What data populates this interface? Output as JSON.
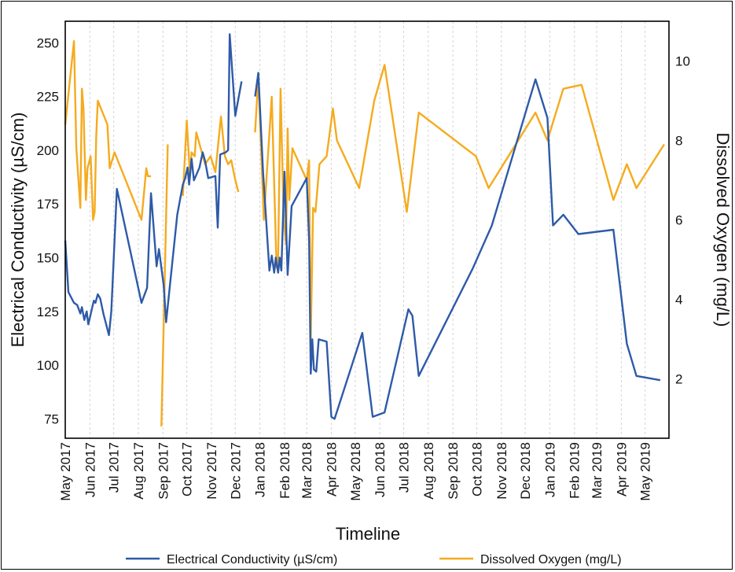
{
  "chart_data": {
    "type": "line",
    "xlabel": "Timeline",
    "ylabel_left": "Electrical Conductivity (µS/cm)",
    "ylabel_right": "Dissolved Oxygen (mg/L)",
    "ylim_left": [
      66,
      260
    ],
    "ylim_right": [
      0.5,
      11
    ],
    "yticks_left": [
      75,
      100,
      125,
      150,
      175,
      200,
      225,
      250
    ],
    "yticks_right": [
      2,
      4,
      6,
      8,
      10
    ],
    "grid": "vertical dashed",
    "legend_position": "bottom",
    "x_months": [
      "May 2017",
      "Jun 2017",
      "Jul 2017",
      "Aug 2017",
      "Sep 2017",
      "Oct 2017",
      "Nov 2017",
      "Dec 2017",
      "Jan 2018",
      "Feb 2018",
      "Mar 2018",
      "Apr 2018",
      "May 2018",
      "Jun 2018",
      "Jul 2018",
      "Aug 2018",
      "Sep 2018",
      "Oct 2018",
      "Nov 2018",
      "Dec 2018",
      "Jan 2019",
      "Feb 2019",
      "Mar 2019",
      "Apr 2019",
      "May 2019"
    ],
    "series": [
      {
        "name": "Electrical Conductivity (µS/cm)",
        "axis": "left",
        "color": "#2e5aa8",
        "segments": [
          [
            [
              "2017-05-01",
              158
            ],
            [
              "2017-05-05",
              134
            ],
            [
              "2017-05-12",
              129
            ],
            [
              "2017-05-16",
              128
            ],
            [
              "2017-05-20",
              124
            ],
            [
              "2017-05-22",
              127
            ],
            [
              "2017-05-25",
              121
            ],
            [
              "2017-05-28",
              125
            ],
            [
              "2017-05-30",
              119
            ],
            [
              "2017-06-01",
              122
            ],
            [
              "2017-06-04",
              127
            ],
            [
              "2017-06-06",
              130
            ],
            [
              "2017-06-08",
              129
            ],
            [
              "2017-06-11",
              133
            ],
            [
              "2017-06-14",
              131
            ],
            [
              "2017-06-18",
              124
            ],
            [
              "2017-06-25",
              114
            ],
            [
              "2017-06-28",
              125
            ],
            [
              "2017-07-05",
              182
            ],
            [
              "2017-08-05",
              129
            ],
            [
              "2017-08-12",
              136
            ],
            [
              "2017-08-17",
              180
            ],
            [
              "2017-08-24",
              146
            ],
            [
              "2017-08-27",
              154
            ],
            [
              "2017-09-02",
              137
            ],
            [
              "2017-09-05",
              120
            ],
            [
              "2017-09-19",
              170
            ],
            [
              "2017-09-26",
              184
            ],
            [
              "2017-09-29",
              187
            ],
            [
              "2017-10-02",
              192
            ],
            [
              "2017-10-04",
              184
            ],
            [
              "2017-10-07",
              196
            ],
            [
              "2017-10-10",
              186
            ],
            [
              "2017-10-17",
              192
            ],
            [
              "2017-10-21",
              199
            ],
            [
              "2017-10-24",
              195
            ],
            [
              "2017-10-28",
              187
            ],
            [
              "2017-11-06",
              188
            ],
            [
              "2017-11-09",
              164
            ],
            [
              "2017-11-12",
              198
            ],
            [
              "2017-11-19",
              199
            ],
            [
              "2017-11-22",
              200
            ],
            [
              "2017-11-24",
              254
            ],
            [
              "2017-12-01",
              216
            ],
            [
              "2017-12-09",
              232
            ]
          ],
          [
            [
              "2017-12-26",
              225
            ],
            [
              "2017-12-30",
              236
            ],
            [
              "2018-01-05",
              190
            ],
            [
              "2018-01-13",
              144
            ],
            [
              "2018-01-16",
              151
            ],
            [
              "2018-01-19",
              143
            ],
            [
              "2018-01-21",
              150
            ],
            [
              "2018-01-24",
              143
            ],
            [
              "2018-01-26",
              150
            ],
            [
              "2018-01-28",
              144
            ],
            [
              "2018-02-01",
              190
            ],
            [
              "2018-02-05",
              142
            ],
            [
              "2018-02-10",
              174
            ],
            [
              "2018-03-01",
              187
            ],
            [
              "2018-03-04",
              158
            ],
            [
              "2018-03-06",
              96
            ],
            [
              "2018-03-08",
              112
            ],
            [
              "2018-03-10",
              98
            ],
            [
              "2018-03-13",
              97
            ],
            [
              "2018-03-16",
              112
            ],
            [
              "2018-03-26",
              111
            ],
            [
              "2018-04-01",
              76
            ],
            [
              "2018-04-05",
              75
            ],
            [
              "2018-05-10",
              115
            ],
            [
              "2018-05-23",
              76
            ],
            [
              "2018-06-07",
              78
            ],
            [
              "2018-07-07",
              126
            ],
            [
              "2018-07-12",
              123
            ],
            [
              "2018-07-20",
              95
            ],
            [
              "2018-09-26",
              145
            ],
            [
              "2018-10-20",
              165
            ],
            [
              "2018-12-14",
              233
            ],
            [
              "2018-12-29",
              215
            ],
            [
              "2019-01-05",
              165
            ],
            [
              "2019-01-18",
              170
            ],
            [
              "2019-02-06",
              161
            ],
            [
              "2019-03-22",
              163
            ],
            [
              "2019-04-08",
              110
            ],
            [
              "2019-04-20",
              95
            ],
            [
              "2019-05-20",
              93
            ]
          ]
        ]
      },
      {
        "name": "Dissolved Oxygen (mg/L)",
        "axis": "right",
        "color": "#f5ab1e",
        "segments": [
          [
            [
              "2017-05-01",
              8.4
            ],
            [
              "2017-05-12",
              10.5
            ],
            [
              "2017-05-15",
              7.8
            ],
            [
              "2017-05-20",
              6.3
            ],
            [
              "2017-05-22",
              9.3
            ],
            [
              "2017-05-24",
              8.8
            ],
            [
              "2017-05-27",
              6.5
            ],
            [
              "2017-05-29",
              7.3
            ],
            [
              "2017-06-02",
              7.6
            ],
            [
              "2017-06-05",
              6.0
            ],
            [
              "2017-06-07",
              6.2
            ],
            [
              "2017-06-09",
              8.1
            ],
            [
              "2017-06-11",
              9.0
            ],
            [
              "2017-06-23",
              8.4
            ],
            [
              "2017-06-26",
              7.3
            ],
            [
              "2017-07-02",
              7.7
            ],
            [
              "2017-08-05",
              6.0
            ],
            [
              "2017-08-11",
              7.3
            ],
            [
              "2017-08-13",
              7.1
            ],
            [
              "2017-08-17",
              7.1
            ]
          ],
          [
            [
              "2017-08-30",
              0.8
            ],
            [
              "2017-09-07",
              7.9
            ]
          ],
          [
            [
              "2017-09-26",
              6.6
            ],
            [
              "2017-10-01",
              8.5
            ],
            [
              "2017-10-05",
              7.1
            ],
            [
              "2017-10-07",
              7.7
            ],
            [
              "2017-10-11",
              7.6
            ],
            [
              "2017-10-13",
              8.2
            ],
            [
              "2017-10-24",
              7.4
            ],
            [
              "2017-10-31",
              7.6
            ],
            [
              "2017-11-06",
              7.2
            ],
            [
              "2017-11-13",
              8.6
            ],
            [
              "2017-11-18",
              7.6
            ],
            [
              "2017-11-22",
              7.4
            ],
            [
              "2017-11-26",
              7.5
            ],
            [
              "2017-12-01",
              7.0
            ],
            [
              "2017-12-05",
              6.7
            ]
          ],
          [
            [
              "2017-12-26",
              8.2
            ],
            [
              "2017-12-30",
              9.6
            ],
            [
              "2018-01-06",
              6.0
            ],
            [
              "2018-01-16",
              9.1
            ],
            [
              "2018-01-22",
              4.8
            ],
            [
              "2018-01-24",
              5.0
            ],
            [
              "2018-01-27",
              9.3
            ],
            [
              "2018-01-31",
              6.0
            ],
            [
              "2018-02-03",
              5.4
            ],
            [
              "2018-02-05",
              8.3
            ],
            [
              "2018-02-07",
              6.5
            ],
            [
              "2018-02-11",
              7.8
            ],
            [
              "2018-03-01",
              7.0
            ],
            [
              "2018-03-04",
              7.5
            ],
            [
              "2018-03-06",
              3.0
            ],
            [
              "2018-03-09",
              6.3
            ],
            [
              "2018-03-12",
              6.2
            ],
            [
              "2018-03-17",
              7.4
            ],
            [
              "2018-03-26",
              7.6
            ],
            [
              "2018-04-03",
              8.8
            ],
            [
              "2018-04-08",
              8.0
            ],
            [
              "2018-05-06",
              6.8
            ],
            [
              "2018-05-25",
              9.0
            ],
            [
              "2018-06-07",
              9.9
            ],
            [
              "2018-07-05",
              6.2
            ],
            [
              "2018-07-20",
              8.7
            ],
            [
              "2018-09-30",
              7.6
            ],
            [
              "2018-10-16",
              6.8
            ],
            [
              "2018-12-14",
              8.7
            ],
            [
              "2018-12-29",
              8.0
            ],
            [
              "2019-01-18",
              9.3
            ],
            [
              "2019-02-10",
              9.4
            ],
            [
              "2019-03-22",
              6.5
            ],
            [
              "2019-04-08",
              7.4
            ],
            [
              "2019-04-20",
              6.8
            ],
            [
              "2019-05-25",
              7.9
            ]
          ]
        ]
      }
    ]
  }
}
